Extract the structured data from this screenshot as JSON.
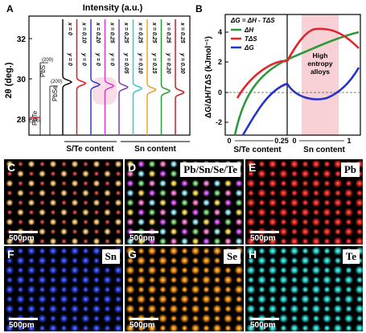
{
  "panelA": {
    "letter": "A",
    "top_label": "Intensity (a.u.)",
    "y_axis_label": "2θ (deg.)",
    "y_ticks": [
      "32",
      "30",
      "28"
    ],
    "ref_labels": [
      "(200)",
      "PbS",
      "(200)",
      "PbSe",
      "PbTe",
      "(200)"
    ],
    "curves": [
      {
        "x": "x = 0",
        "y": "y = 0",
        "color": "#111111"
      },
      {
        "x": "x = 0.10",
        "y": "y = 0",
        "color": "#e4181b"
      },
      {
        "x": "x = 0.20",
        "y": "y = 0",
        "color": "#2d3fbf"
      },
      {
        "x": "x = 0.25",
        "y": "y = 0",
        "color": "#d63ad0"
      },
      {
        "x": "x = 0.25",
        "y": "y = 0.05",
        "color": "#7b3fb0"
      },
      {
        "x": "x = 0.25",
        "y": "y = 0.10",
        "color": "#39c7d6"
      },
      {
        "x": "x = 0.25",
        "y": "y = 0.15",
        "color": "#f2a22b"
      },
      {
        "x": "x = 0.25",
        "y": "y = 0.20",
        "color": "#2a9a3c"
      },
      {
        "x": "x = 0.25",
        "y": "y = 0.30",
        "color": "#c4232a"
      }
    ],
    "bottom_left": "S/Te content",
    "bottom_right": "Sn content"
  },
  "panelB": {
    "letter": "B",
    "equation": "ΔG = ΔH - TΔS",
    "legend": [
      {
        "label": "ΔH",
        "color": "#2d9a3a"
      },
      {
        "label": "TΔS",
        "color": "#e4242b"
      },
      {
        "label": "ΔG",
        "color": "#2433c9"
      }
    ],
    "y_axis_label": "ΔG/ΔH/TΔS (kJmol⁻¹)",
    "y_ticks": [
      "4",
      "2",
      "0",
      "-2"
    ],
    "x_left_ticks": [
      "0",
      "0.25"
    ],
    "x_right_ticks": [
      "0",
      "1"
    ],
    "x_left_label": "S/Te content",
    "x_right_label": "Sn content",
    "region_label": "High entropy alloys"
  },
  "panels": [
    {
      "letter": "C",
      "element": "",
      "scalebar": "500pm"
    },
    {
      "letter": "D",
      "element": "Pb/Sn/Se/Te",
      "scalebar": "500pm"
    },
    {
      "letter": "E",
      "element": "Pb",
      "scalebar": "500pm"
    },
    {
      "letter": "F",
      "element": "Sn",
      "scalebar": "500pm"
    },
    {
      "letter": "G",
      "element": "Se",
      "scalebar": "500pm"
    },
    {
      "letter": "H",
      "element": "Te",
      "scalebar": "500pm"
    }
  ]
}
